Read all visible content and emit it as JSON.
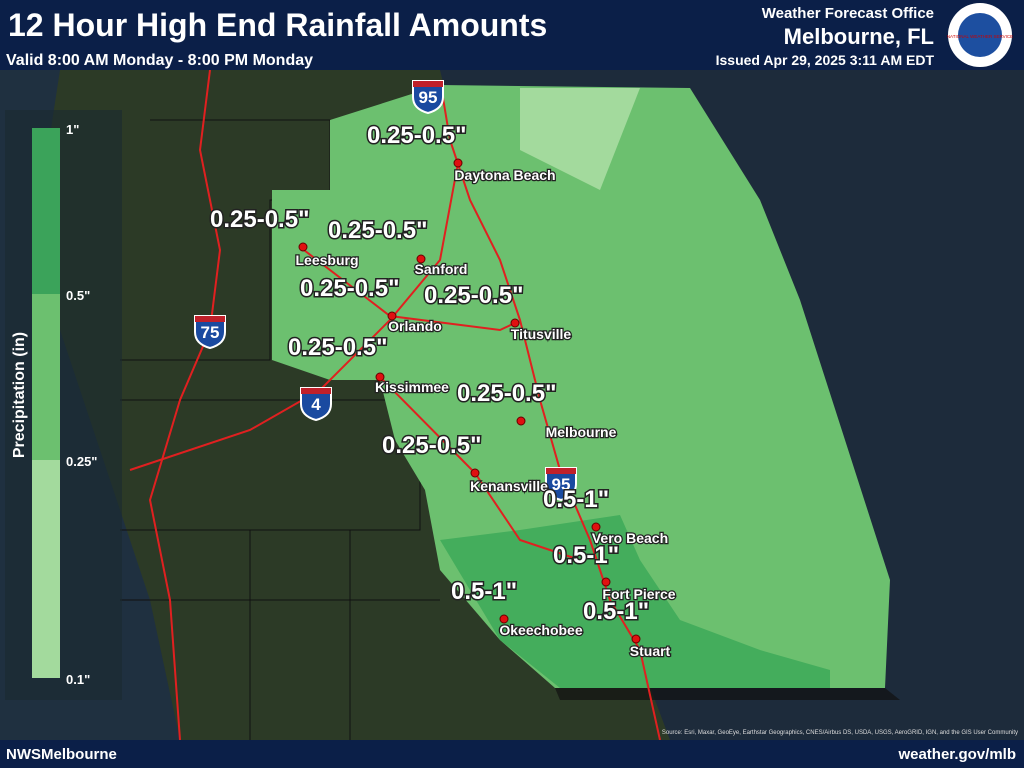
{
  "header": {
    "title": "12 Hour High End Rainfall Amounts",
    "valid": "Valid 8:00 AM Monday - 8:00 PM Monday",
    "office": "Weather Forecast Office",
    "location": "Melbourne, FL",
    "issued": "Issued Apr 29, 2025 3:11 AM EDT",
    "logo_text": "NATIONAL WEATHER SERVICE"
  },
  "legend": {
    "title": "Precipitation (in)",
    "labels": [
      "1\"",
      "0.5\"",
      "0.25\"",
      "0.1\""
    ]
  },
  "cities": [
    {
      "name": "Daytona Beach",
      "amount": "0.25-0.5\""
    },
    {
      "name": "Leesburg",
      "amount": "0.25-0.5\""
    },
    {
      "name": "Sanford",
      "amount": "0.25-0.5\""
    },
    {
      "name": "Orlando",
      "amount": "0.25-0.5\""
    },
    {
      "name": "Titusville",
      "amount": "0.25-0.5\""
    },
    {
      "name": "Kissimmee",
      "amount": "0.25-0.5\""
    },
    {
      "name": "Melbourne",
      "amount": "0.25-0.5\""
    },
    {
      "name": "Kenansville",
      "amount": "0.25-0.5\""
    },
    {
      "name": "Vero Beach",
      "amount": "0.5-1\""
    },
    {
      "name": "Fort Pierce",
      "amount": "0.5-1\""
    },
    {
      "name": "Okeechobee",
      "amount": "0.5-1\""
    },
    {
      "name": "Stuart",
      "amount": "0.5-1\""
    }
  ],
  "highways": [
    "95",
    "75",
    "4",
    "95"
  ],
  "footer": {
    "left": "NWSMelbourne",
    "right": "weather.gov/mlb",
    "source": "Source: Esri, Maxar, GeoEye, Earthstar Geographics, CNES/Airbus DS, USDA, USGS, AeroGRID, IGN, and the GIS User Community"
  }
}
